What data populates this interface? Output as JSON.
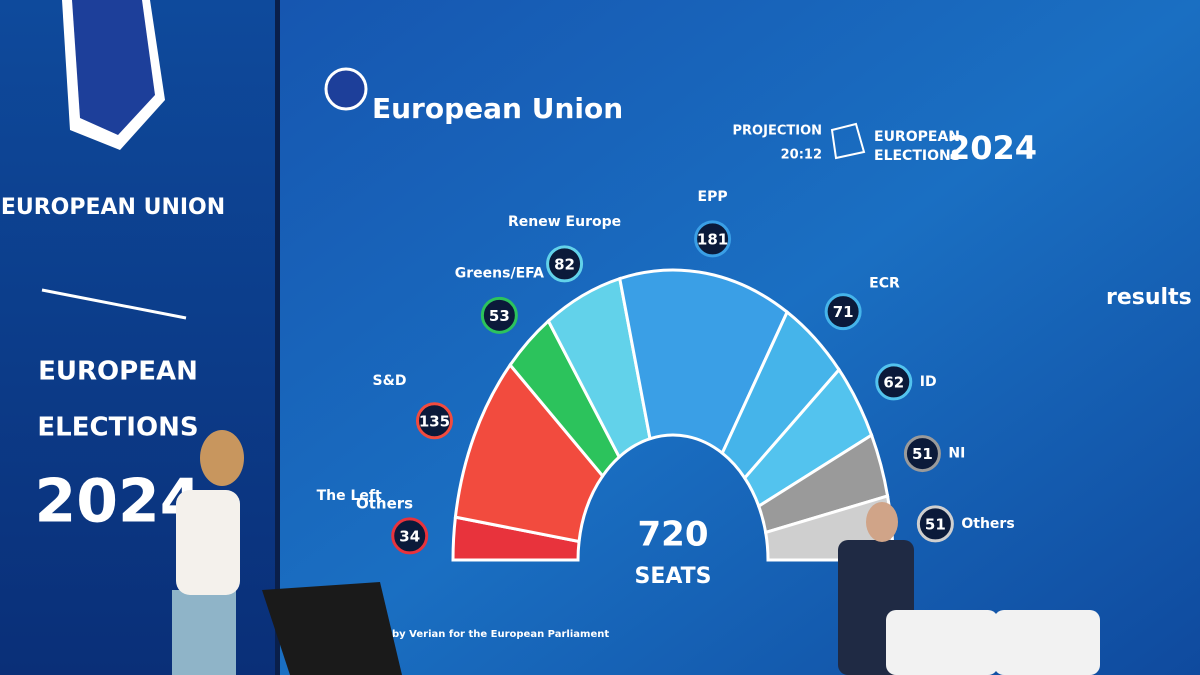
{
  "left_panel": {
    "union": "EUROPEAN UNION",
    "line1": "EUROPEAN",
    "line2": "ELECTIONS",
    "year": "2024"
  },
  "header": {
    "logo_text": "European Union",
    "projection": "PROJECTION",
    "time": "20:12",
    "elections_line1": "EUROPEAN",
    "elections_line2": "ELECTIONS",
    "year": "2024"
  },
  "side_text": "results",
  "chart_data": {
    "type": "hemicycle",
    "categories": [
      "The Left",
      "S&D",
      "Greens/EFA",
      "Renew Europe",
      "EPP",
      "ECR",
      "ID",
      "NI",
      "Others"
    ],
    "values": [
      34,
      135,
      53,
      82,
      181,
      71,
      62,
      51,
      51
    ],
    "colors": [
      "#e8333c",
      "#f24b3e",
      "#2cc35c",
      "#62d2ea",
      "#3a9fe6",
      "#45b4ea",
      "#53c3ee",
      "#9a9a9a",
      "#cfcfcf"
    ],
    "total": 720,
    "total_label": "SEATS",
    "annotation": "Others",
    "source": "by Verian for the European Parliament"
  }
}
